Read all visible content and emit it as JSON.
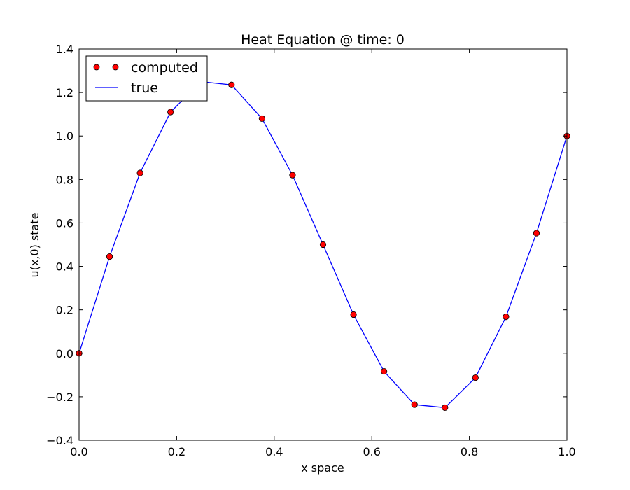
{
  "chart_data": {
    "type": "line",
    "title": "Heat Equation @ time: 0",
    "xlabel": "x space",
    "ylabel": "u(x,0) state",
    "xlim": [
      0.0,
      1.0
    ],
    "ylim": [
      -0.4,
      1.4
    ],
    "x_ticks": [
      "0.0",
      "0.2",
      "0.4",
      "0.6",
      "0.8",
      "1.0"
    ],
    "y_ticks": [
      "−0.4",
      "−0.2",
      "0.0",
      "0.2",
      "0.4",
      "0.6",
      "0.8",
      "1.0",
      "1.2",
      "1.4"
    ],
    "x_tick_values": [
      0.0,
      0.2,
      0.4,
      0.6,
      0.8,
      1.0
    ],
    "y_tick_values": [
      -0.4,
      -0.2,
      0.0,
      0.2,
      0.4,
      0.6,
      0.8,
      1.0,
      1.2,
      1.4
    ],
    "grid": false,
    "legend_position": "upper-left",
    "series": [
      {
        "name": "computed",
        "style": "markers",
        "color": "#ff0000",
        "edge_color": "#000000",
        "x": [
          0.0,
          0.0625,
          0.125,
          0.1875,
          0.25,
          0.3125,
          0.375,
          0.4375,
          0.5,
          0.5625,
          0.625,
          0.6875,
          0.75,
          0.8125,
          0.875,
          0.9375,
          1.0
        ],
        "y": [
          0.0,
          0.445,
          0.83,
          1.11,
          1.25,
          1.235,
          1.08,
          0.82,
          0.5,
          0.178,
          -0.083,
          -0.236,
          -0.25,
          -0.112,
          0.168,
          0.553,
          1.0
        ]
      },
      {
        "name": "true",
        "style": "line",
        "color": "#0000ff",
        "x": [
          0.0,
          0.0625,
          0.125,
          0.1875,
          0.25,
          0.3125,
          0.375,
          0.4375,
          0.5,
          0.5625,
          0.625,
          0.6875,
          0.75,
          0.8125,
          0.875,
          0.9375,
          1.0
        ],
        "y": [
          0.0,
          0.445,
          0.83,
          1.11,
          1.25,
          1.235,
          1.08,
          0.82,
          0.5,
          0.178,
          -0.083,
          -0.236,
          -0.25,
          -0.112,
          0.168,
          0.553,
          1.0
        ]
      }
    ]
  }
}
